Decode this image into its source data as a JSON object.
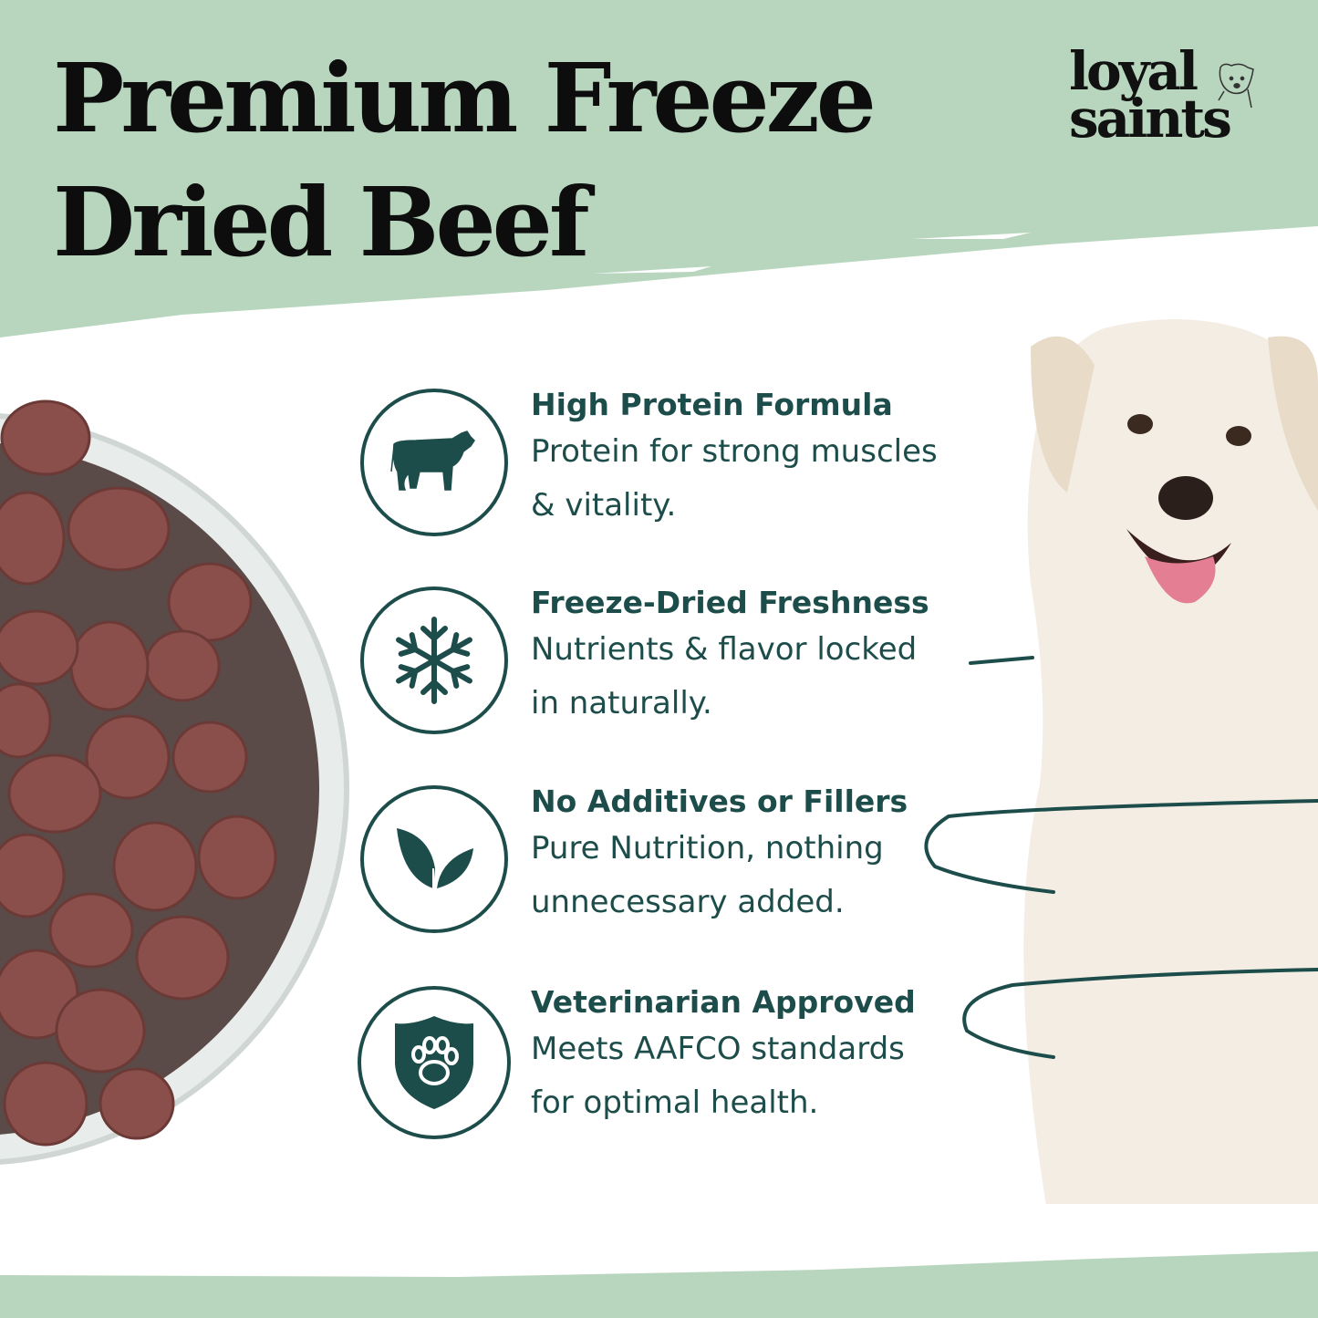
{
  "title": {
    "line1": "Premium Freeze",
    "line2": "Dried Beef"
  },
  "logo": {
    "text_line1": "loyal",
    "text_line2": "saints"
  },
  "colors": {
    "background_green": "#b8d6be",
    "accent_teal": "#1d4d4a",
    "title_black": "#0d0d0d"
  },
  "features": [
    {
      "icon": "cow-icon",
      "heading": "High Protein Formula",
      "text": "Protein for strong muscles\n & vitality."
    },
    {
      "icon": "snowflake-icon",
      "heading": "Freeze-Dried Freshness",
      "text": "Nutrients & flavor locked\nin naturally."
    },
    {
      "icon": "leaf-icon",
      "heading": "No Additives or Fillers",
      "text": "Pure Nutrition, nothing\nunnecessary added."
    },
    {
      "icon": "paw-shield-icon",
      "heading": "Veterinarian Approved",
      "text": "Meets AAFCO standards\nfor optimal health."
    }
  ]
}
